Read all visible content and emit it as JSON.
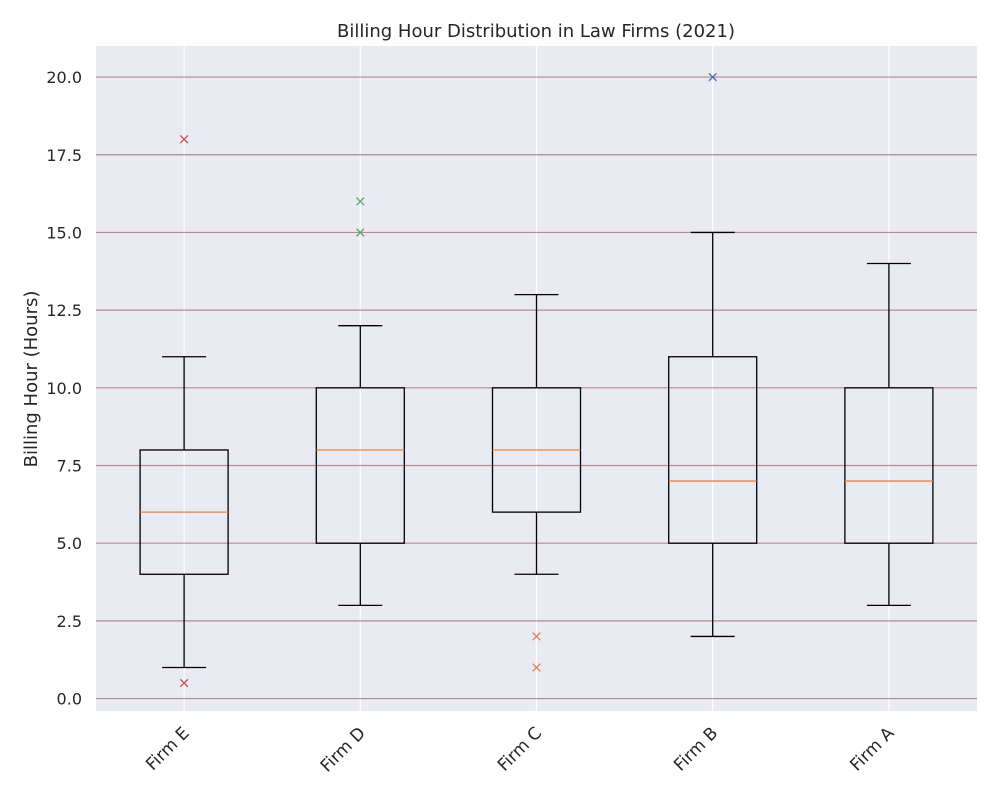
{
  "chart_data": {
    "type": "box",
    "title": "Billing Hour Distribution in Law Firms (2021)",
    "xlabel": "",
    "ylabel": "Billing Hour (Hours)",
    "ylim": [
      -0.4,
      21.0
    ],
    "yticks": [
      0.0,
      2.5,
      5.0,
      7.5,
      10.0,
      12.5,
      15.0,
      17.5,
      20.0
    ],
    "ytick_labels": [
      "0.0",
      "2.5",
      "5.0",
      "7.5",
      "10.0",
      "12.5",
      "15.0",
      "17.5",
      "20.0"
    ],
    "grid": true,
    "categories": [
      "Firm E",
      "Firm D",
      "Firm C",
      "Firm B",
      "Firm A"
    ],
    "boxes": [
      {
        "category": "Firm E",
        "whisker_low": 1,
        "q1": 4,
        "median": 6,
        "q3": 8,
        "whisker_high": 11,
        "outliers": [
          0.5,
          18
        ],
        "outlier_color": "#c44e52"
      },
      {
        "category": "Firm D",
        "whisker_low": 3,
        "q1": 5,
        "median": 8,
        "q3": 10,
        "whisker_high": 12,
        "outliers": [
          15,
          16
        ],
        "outlier_color": "#55a868"
      },
      {
        "category": "Firm C",
        "whisker_low": 4,
        "q1": 6,
        "median": 8,
        "q3": 10,
        "whisker_high": 13,
        "outliers": [
          1,
          2
        ],
        "outlier_color": "#dd8452"
      },
      {
        "category": "Firm B",
        "whisker_low": 2,
        "q1": 5,
        "median": 7,
        "q3": 11,
        "whisker_high": 15,
        "outliers": [
          20
        ],
        "outlier_color": "#4c72b0"
      },
      {
        "category": "Firm A",
        "whisker_low": 3,
        "q1": 5,
        "median": 7,
        "q3": 10,
        "whisker_high": 14,
        "outliers": [],
        "outlier_color": "#4c72b0"
      }
    ],
    "colors": {
      "background": "#eaeaf2",
      "grid_horizontal": "#b58a93",
      "grid_vertical": "#ffffff",
      "box": "#000000",
      "median": "#dd8452"
    }
  }
}
